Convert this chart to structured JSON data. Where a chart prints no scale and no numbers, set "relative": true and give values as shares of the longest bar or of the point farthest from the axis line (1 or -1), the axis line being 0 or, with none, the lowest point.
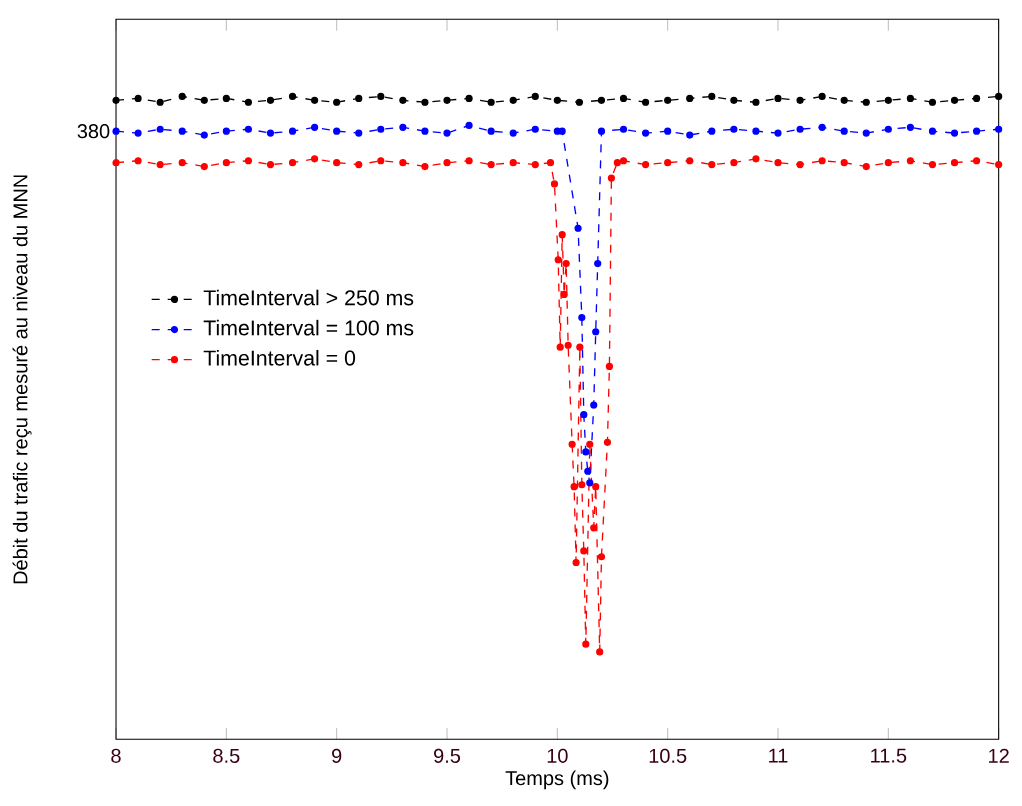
{
  "chart_data": {
    "type": "line",
    "xlabel": "Temps (ms)",
    "ylabel": "Débit du trafic reçu mesuré au niveau du MNN",
    "relative": true,
    "xlim": [
      8,
      12
    ],
    "xticks": [
      8,
      8.5,
      9,
      9.5,
      10,
      10.5,
      11,
      11.5,
      12
    ],
    "legend": "left",
    "marker": "circle",
    "line_style": "dashed",
    "grid": false,
    "annotations": [
      {
        "text": "380",
        "x": 8,
        "y": 0.946
      }
    ],
    "series": [
      {
        "name": "TimeInterval > 250 ms",
        "color": "#000000",
        "x": [
          8.0,
          8.1,
          8.2,
          8.3,
          8.4,
          8.5,
          8.6,
          8.7,
          8.8,
          8.9,
          9.0,
          9.1,
          9.2,
          9.3,
          9.4,
          9.5,
          9.6,
          9.7,
          9.8,
          9.9,
          10.0,
          10.1,
          10.2,
          10.3,
          10.4,
          10.5,
          10.6,
          10.7,
          10.8,
          10.9,
          11.0,
          11.1,
          11.2,
          11.3,
          11.4,
          11.5,
          11.6,
          11.7,
          11.8,
          11.9,
          12.0
        ],
        "values": [
          0.994,
          0.997,
          0.991,
          1.0,
          0.994,
          0.997,
          0.991,
          0.994,
          1.0,
          0.994,
          0.991,
          0.997,
          1.0,
          0.994,
          0.991,
          0.994,
          0.997,
          0.991,
          0.994,
          1.0,
          0.994,
          0.991,
          0.994,
          0.997,
          0.991,
          0.994,
          0.997,
          1.0,
          0.994,
          0.991,
          0.997,
          0.994,
          1.0,
          0.994,
          0.991,
          0.994,
          0.997,
          0.991,
          0.994,
          0.997,
          1.0
        ]
      },
      {
        "name": "TimeInterval = 100 ms",
        "color": "#0000ff",
        "x": [
          8.0,
          8.1,
          8.2,
          8.3,
          8.4,
          8.5,
          8.6,
          8.7,
          8.8,
          8.9,
          9.0,
          9.1,
          9.2,
          9.3,
          9.4,
          9.5,
          9.6,
          9.7,
          9.8,
          9.9,
          10.0,
          10.022,
          10.094,
          10.111,
          10.12,
          10.129,
          10.138,
          10.147,
          10.165,
          10.174,
          10.183,
          10.2,
          10.3,
          10.4,
          10.5,
          10.6,
          10.7,
          10.8,
          10.9,
          11.0,
          11.1,
          11.2,
          11.3,
          11.4,
          11.5,
          11.6,
          11.7,
          11.8,
          11.9,
          12.0
        ],
        "values": [
          0.946,
          0.943,
          0.949,
          0.946,
          0.94,
          0.946,
          0.949,
          0.943,
          0.946,
          0.952,
          0.946,
          0.943,
          0.949,
          0.952,
          0.946,
          0.943,
          0.955,
          0.946,
          0.943,
          0.949,
          0.946,
          0.946,
          0.795,
          0.656,
          0.505,
          0.447,
          0.417,
          0.399,
          0.52,
          0.634,
          0.74,
          0.946,
          0.949,
          0.943,
          0.946,
          0.94,
          0.946,
          0.949,
          0.946,
          0.943,
          0.949,
          0.952,
          0.946,
          0.943,
          0.949,
          0.952,
          0.946,
          0.943,
          0.946,
          0.949
        ]
      },
      {
        "name": "TimeInterval = 0",
        "color": "#ff0000",
        "x": [
          8.0,
          8.1,
          8.2,
          8.3,
          8.4,
          8.5,
          8.6,
          8.7,
          8.8,
          8.9,
          9.0,
          9.1,
          9.2,
          9.3,
          9.4,
          9.5,
          9.6,
          9.7,
          9.8,
          9.9,
          9.969,
          9.987,
          10.004,
          10.013,
          10.022,
          10.031,
          10.04,
          10.049,
          10.067,
          10.076,
          10.085,
          10.102,
          10.111,
          10.12,
          10.129,
          10.147,
          10.165,
          10.174,
          10.192,
          10.2,
          10.227,
          10.236,
          10.245,
          10.272,
          10.3,
          10.4,
          10.5,
          10.6,
          10.7,
          10.8,
          10.9,
          11.0,
          11.1,
          11.2,
          11.3,
          11.4,
          11.5,
          11.6,
          11.7,
          11.8,
          11.9,
          12.0
        ],
        "values": [
          0.897,
          0.9,
          0.894,
          0.897,
          0.891,
          0.897,
          0.9,
          0.894,
          0.897,
          0.903,
          0.897,
          0.894,
          0.9,
          0.897,
          0.891,
          0.897,
          0.9,
          0.894,
          0.897,
          0.894,
          0.897,
          0.864,
          0.746,
          0.61,
          0.785,
          0.692,
          0.74,
          0.613,
          0.459,
          0.393,
          0.275,
          0.61,
          0.396,
          0.293,
          0.148,
          0.459,
          0.329,
          0.393,
          0.136,
          0.284,
          0.462,
          0.58,
          0.873,
          0.897,
          0.9,
          0.894,
          0.897,
          0.9,
          0.894,
          0.897,
          0.903,
          0.897,
          0.894,
          0.9,
          0.897,
          0.891,
          0.897,
          0.9,
          0.894,
          0.897,
          0.9,
          0.894
        ]
      }
    ]
  }
}
